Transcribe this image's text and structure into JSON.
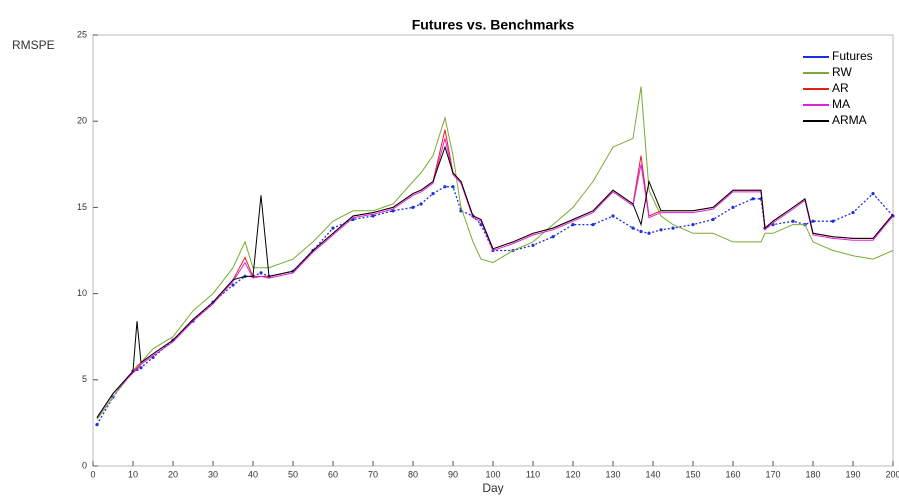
{
  "chart_data": {
    "type": "line",
    "title": "Futures vs. Benchmarks",
    "x_label": "Day",
    "y_label": "RMSPE",
    "x": [
      1,
      5,
      10,
      11,
      12,
      15,
      20,
      25,
      30,
      35,
      38,
      40,
      42,
      44,
      50,
      55,
      60,
      65,
      70,
      75,
      80,
      82,
      85,
      88,
      90,
      92,
      95,
      97,
      100,
      105,
      110,
      115,
      120,
      125,
      130,
      135,
      137,
      139,
      142,
      145,
      150,
      155,
      160,
      165,
      167,
      168,
      170,
      175,
      178,
      180,
      185,
      190,
      195,
      200
    ],
    "series": [
      {
        "name": "Futures",
        "color": "#1f2fe0",
        "markers": true,
        "values": [
          2.4,
          4,
          5.5,
          5.6,
          5.7,
          6.3,
          7.3,
          8.4,
          9.5,
          10.5,
          11,
          11,
          11.2,
          11,
          11.3,
          12.5,
          13.8,
          14.3,
          14.5,
          14.8,
          15,
          15.2,
          15.8,
          16.2,
          16.2,
          14.8,
          14.5,
          14,
          12.5,
          12.5,
          12.8,
          13.3,
          14,
          14,
          14.5,
          13.8,
          13.6,
          13.5,
          13.7,
          13.8,
          14,
          14.3,
          15,
          15.5,
          15.5,
          13.8,
          14,
          14.2,
          14,
          14.2,
          14.2,
          14.7,
          15.8,
          14.5
        ]
      },
      {
        "name": "RW",
        "color": "#77ac30",
        "markers": false,
        "values": [
          2.7,
          4,
          5.5,
          5.8,
          6,
          6.8,
          7.5,
          9,
          10,
          11.5,
          13,
          11.5,
          11.5,
          11.5,
          12,
          13,
          14.2,
          14.8,
          14.8,
          15.2,
          16.5,
          17,
          18,
          20.2,
          18,
          15,
          13,
          12,
          11.8,
          12.5,
          13,
          14,
          15,
          16.5,
          18.5,
          19,
          22,
          16,
          14.5,
          14,
          13.5,
          13.5,
          13,
          13,
          13,
          13.5,
          13.5,
          14,
          14,
          13,
          12.5,
          12.2,
          12,
          12.5
        ]
      },
      {
        "name": "AR",
        "color": "#e0201b",
        "markers": false,
        "values": [
          2.8,
          4.2,
          5.5,
          5.7,
          6,
          6.5,
          7.3,
          8.5,
          9.5,
          10.8,
          12.1,
          11,
          11,
          11,
          11.3,
          12.5,
          13.5,
          14.5,
          14.7,
          15,
          15.8,
          16,
          16.5,
          19.5,
          17,
          16.5,
          14.5,
          14.3,
          12.6,
          13,
          13.5,
          13.8,
          14.3,
          14.8,
          16,
          15.2,
          18,
          14.5,
          14.8,
          14.8,
          14.8,
          15,
          16,
          16,
          16,
          13.8,
          14.2,
          15,
          15.5,
          13.5,
          13.3,
          13.2,
          13.2,
          14.6
        ]
      },
      {
        "name": "MA",
        "color": "#e020e0",
        "markers": false,
        "values": [
          2.8,
          4.2,
          5.4,
          5.6,
          5.9,
          6.4,
          7.2,
          8.4,
          9.4,
          10.7,
          11.8,
          10.9,
          11,
          10.9,
          11.2,
          12.4,
          13.4,
          14.4,
          14.6,
          14.9,
          15.7,
          15.9,
          16.4,
          19,
          16.9,
          16.4,
          14.4,
          14.2,
          12.5,
          12.9,
          13.4,
          13.7,
          14.2,
          14.7,
          15.9,
          15.1,
          17.5,
          14.4,
          14.7,
          14.7,
          14.7,
          14.9,
          15.9,
          15.9,
          15.9,
          13.7,
          14.1,
          14.9,
          15.4,
          13.4,
          13.2,
          13.1,
          13.1,
          14.5
        ]
      },
      {
        "name": "ARMA",
        "color": "#000000",
        "markers": false,
        "values": [
          2.8,
          4.2,
          5.5,
          8.4,
          6,
          6.5,
          7.3,
          8.5,
          9.5,
          10.8,
          11,
          11,
          15.7,
          11,
          11.3,
          12.5,
          13.5,
          14.5,
          14.7,
          15,
          15.8,
          16,
          16.5,
          18.5,
          17,
          16.5,
          14.5,
          14.3,
          12.6,
          13,
          13.5,
          13.8,
          14.3,
          14.8,
          16,
          15.2,
          14,
          16.5,
          14.8,
          14.8,
          14.8,
          15,
          16,
          16,
          16,
          13.8,
          14.2,
          15,
          15.5,
          13.5,
          13.3,
          13.2,
          13.2,
          14.6
        ]
      }
    ],
    "xlim": [
      0,
      200
    ],
    "xticks": [
      0,
      10,
      20,
      30,
      40,
      50,
      60,
      70,
      80,
      90,
      100,
      110,
      120,
      130,
      140,
      150,
      160,
      170,
      180,
      190,
      200
    ],
    "ylim": [
      0,
      25
    ],
    "yticks": [
      0,
      5,
      10,
      15,
      20,
      25
    ],
    "legend": "northeast"
  }
}
